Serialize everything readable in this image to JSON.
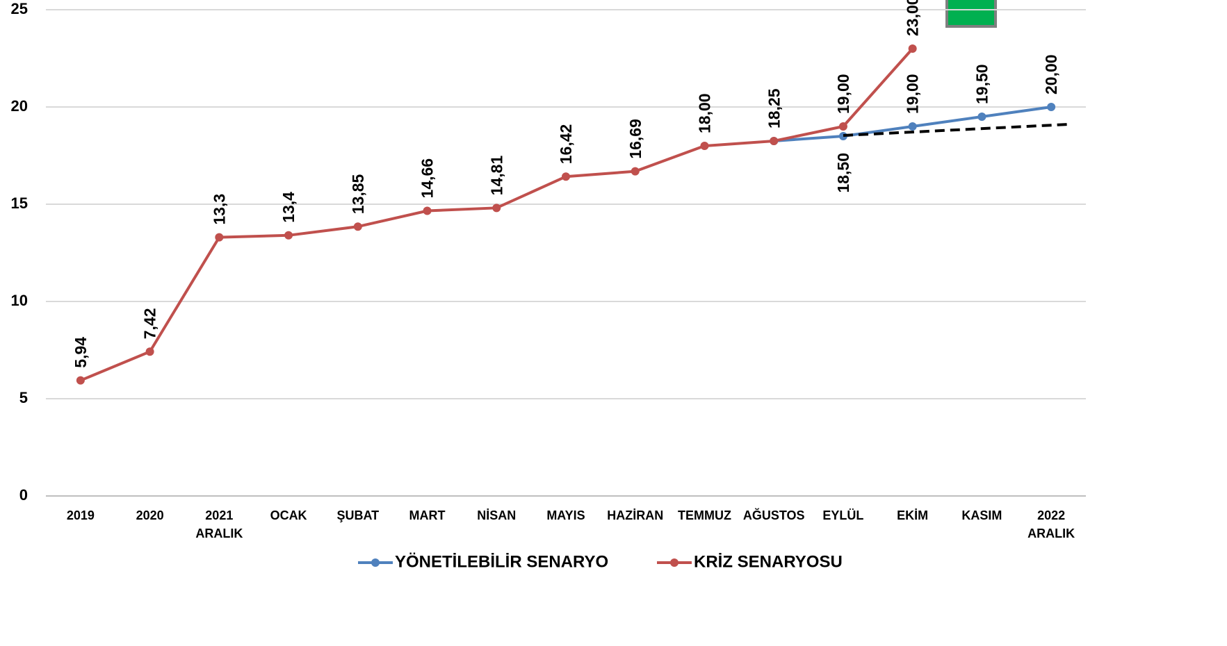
{
  "chart_data": {
    "type": "line",
    "categories": [
      "2019",
      "2020",
      "2021 ARALIK",
      "OCAK",
      "ŞUBAT",
      "MART",
      "NİSAN",
      "MAYIS",
      "HAZİRAN",
      "TEMMUZ",
      "AĞUSTOS",
      "EYLÜL",
      "EKİM",
      "KASIM",
      "2022 ARALIK"
    ],
    "series": [
      {
        "name": "YÖNETİLEBİLİR SENARYO",
        "color": "#4f81bd",
        "values": [
          null,
          null,
          null,
          null,
          null,
          null,
          null,
          null,
          null,
          null,
          18.25,
          18.5,
          19.0,
          19.5,
          20.0
        ],
        "value_labels": [
          null,
          null,
          null,
          null,
          null,
          null,
          null,
          null,
          null,
          null,
          null,
          "18,50",
          "19,00",
          "19,50",
          "20,00"
        ]
      },
      {
        "name": "KRİZ SENARYOSU",
        "color": "#c0504d",
        "values": [
          5.94,
          7.42,
          13.3,
          13.4,
          13.85,
          14.66,
          14.81,
          16.42,
          16.69,
          18.0,
          18.25,
          19.0,
          23.0,
          null,
          null
        ],
        "value_labels": [
          "5,94",
          "7,42",
          "13,3",
          "13,4",
          "13,85",
          "14,66",
          "14,81",
          "16,42",
          "16,69",
          "18,00",
          "18,25",
          "19,00",
          "23,00",
          null,
          null
        ]
      }
    ],
    "ylim": [
      0,
      25
    ],
    "yticks": [
      0,
      5,
      10,
      15,
      20,
      25
    ],
    "grid": true,
    "legend": "bottom"
  }
}
